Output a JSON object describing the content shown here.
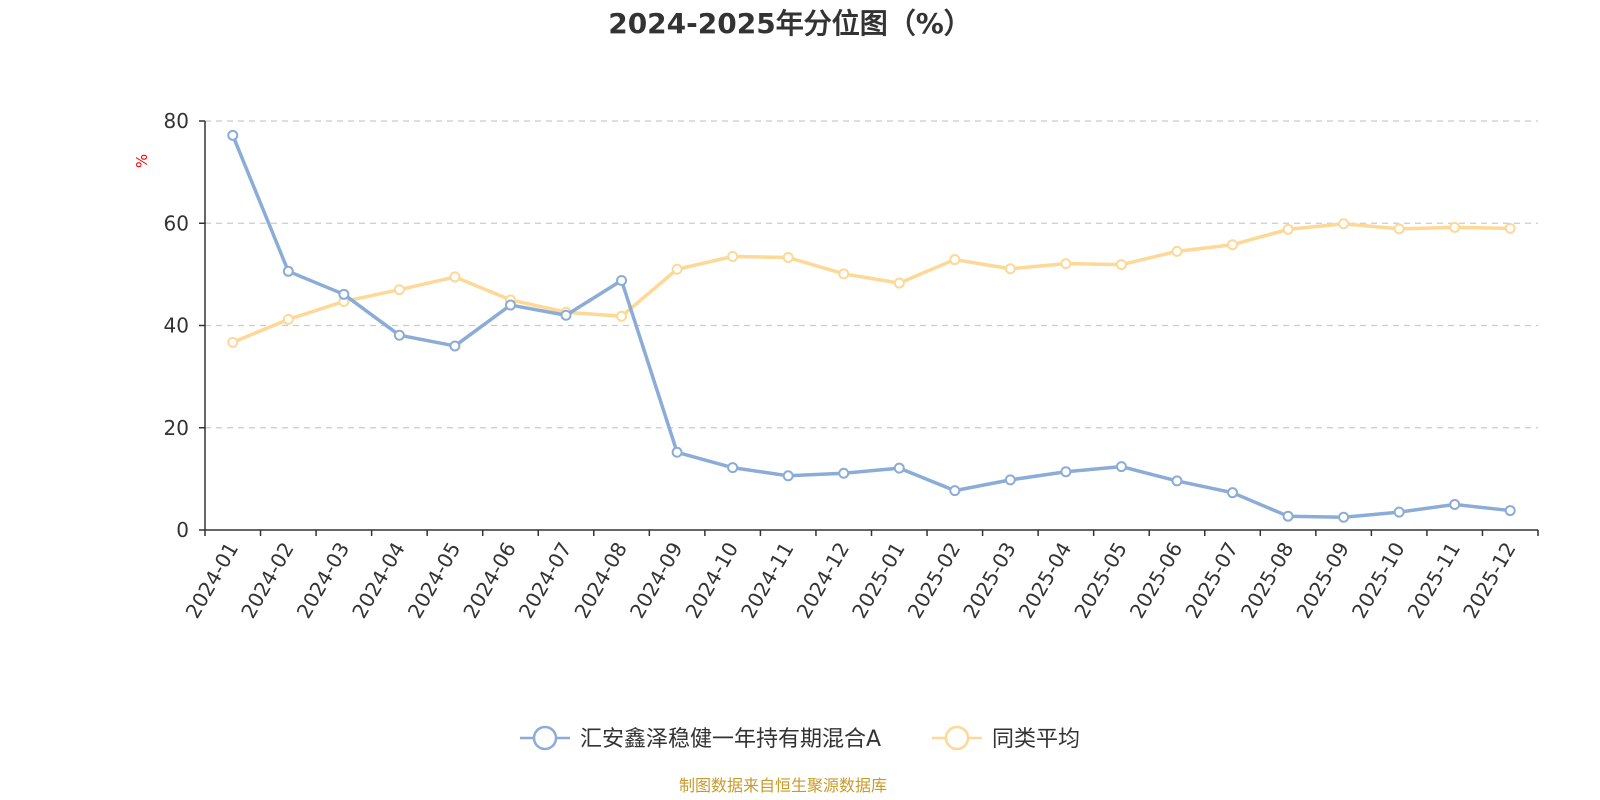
{
  "chart_data": {
    "type": "line",
    "title": "2024-2025年分位图（%）",
    "ylabel": "%",
    "xlabel": "",
    "ylim": [
      0,
      80
    ],
    "yticks": [
      0,
      20,
      40,
      60,
      80
    ],
    "grid": "horizontal-dashed",
    "categories": [
      "2024-01",
      "2024-02",
      "2024-03",
      "2024-04",
      "2024-05",
      "2024-06",
      "2024-07",
      "2024-08",
      "2024-09",
      "2024-10",
      "2024-11",
      "2024-12",
      "2025-01",
      "2025-02",
      "2025-03",
      "2025-04",
      "2025-05",
      "2025-06",
      "2025-07",
      "2025-08",
      "2025-09",
      "2025-10",
      "2025-11",
      "2025-12"
    ],
    "series": [
      {
        "name": "汇安鑫泽稳健一年持有期混合A",
        "color": "#8cacd8",
        "values": [
          77.2,
          50.6,
          46.1,
          38.1,
          36.0,
          44.0,
          42.0,
          48.8,
          15.2,
          12.2,
          10.6,
          11.1,
          12.1,
          7.7,
          9.8,
          11.4,
          12.4,
          9.6,
          7.3,
          2.7,
          2.5,
          3.5,
          5.0,
          3.8
        ]
      },
      {
        "name": "同类平均",
        "color": "#fdd896",
        "values": [
          36.7,
          41.2,
          44.7,
          47.0,
          49.5,
          45.0,
          42.6,
          41.8,
          51.0,
          53.5,
          53.3,
          50.1,
          48.3,
          52.9,
          51.1,
          52.1,
          51.9,
          54.5,
          55.8,
          58.8,
          59.9,
          58.9,
          59.2,
          59.0
        ]
      }
    ],
    "legend_position": "bottom-center"
  },
  "source_note": "制图数据来自恒生聚源数据库"
}
